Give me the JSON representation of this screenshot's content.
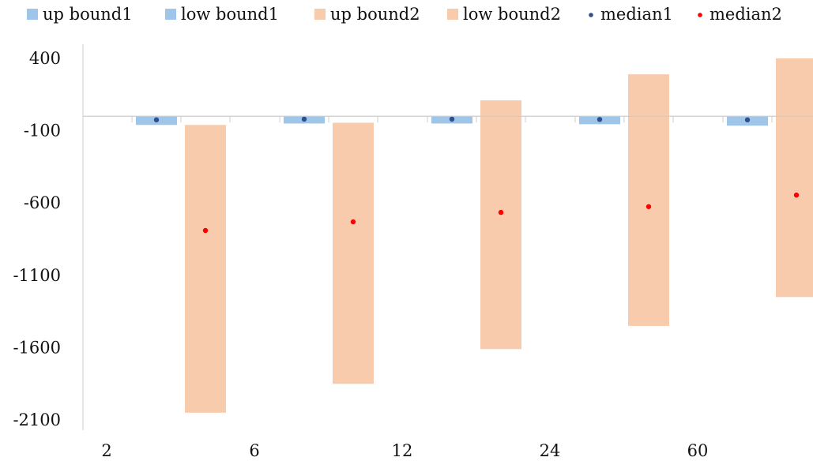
{
  "chart_data": {
    "type": "bar",
    "categories": [
      "2",
      "6",
      "12",
      "24",
      "60"
    ],
    "yticks": [
      400,
      -100,
      -600,
      -1100,
      -1600,
      -2100
    ],
    "ylim": [
      -2120,
      440
    ],
    "legend_position": "top",
    "grid": false,
    "colors": {
      "bound1": "#9fc5e8",
      "bound2": "#f8cbad",
      "median1": "#2f4f8f",
      "median2": "#ff0000",
      "axis": "#cccccc"
    },
    "legend": [
      {
        "key": "up_bound1",
        "label": "up bound1",
        "marker": "square",
        "color": "#9fc5e8"
      },
      {
        "key": "low_bound1",
        "label": "low bound1",
        "marker": "square",
        "color": "#9fc5e8"
      },
      {
        "key": "up_bound2",
        "label": "up bound2",
        "marker": "square",
        "color": "#f8cbad"
      },
      {
        "key": "low_bound2",
        "label": "low bound2",
        "marker": "square",
        "color": "#f8cbad"
      },
      {
        "key": "median1",
        "label": "median1",
        "marker": "dot",
        "color": "#2f4f8f"
      },
      {
        "key": "median2",
        "label": "median2",
        "marker": "dot",
        "color": "#ff0000"
      }
    ],
    "series": [
      {
        "key": "up_bound1",
        "values": [
          0,
          0,
          0,
          0,
          0
        ]
      },
      {
        "key": "low_bound1",
        "values": [
          -60,
          -50,
          -50,
          -55,
          -65
        ]
      },
      {
        "key": "up_bound2",
        "values": [
          -60,
          -45,
          110,
          290,
          400
        ]
      },
      {
        "key": "low_bound2",
        "values": [
          -2050,
          -1850,
          -1610,
          -1450,
          -1250
        ]
      },
      {
        "key": "median1",
        "values": [
          -25,
          -20,
          -20,
          -22,
          -25
        ]
      },
      {
        "key": "median2",
        "values": [
          -790,
          -730,
          -665,
          -625,
          -545
        ]
      }
    ]
  }
}
